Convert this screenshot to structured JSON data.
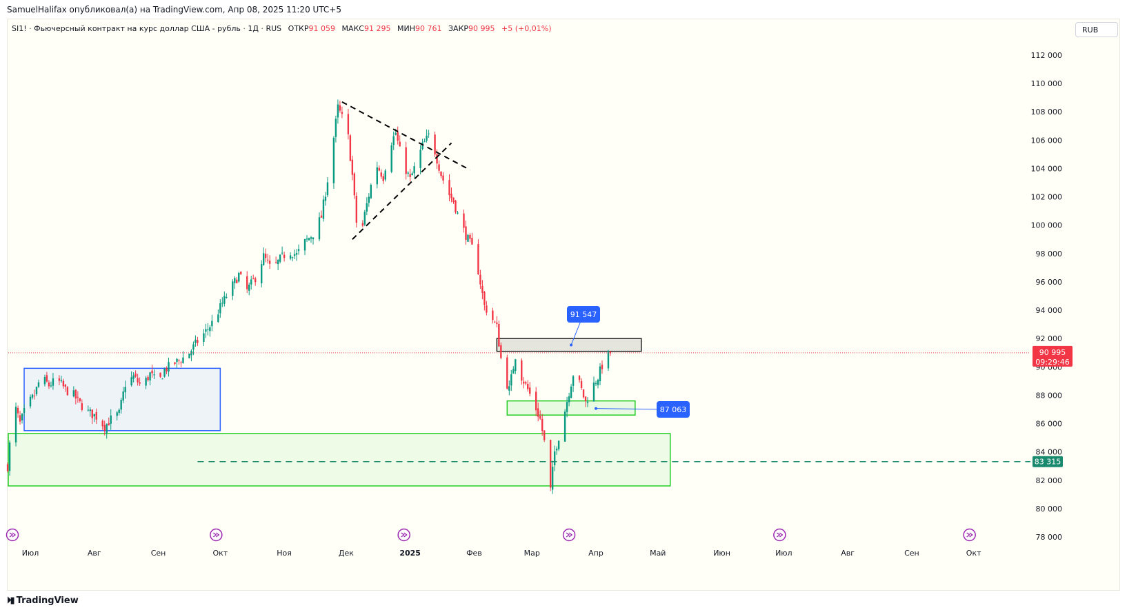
{
  "publisher_line": "SamuelHalifax опубликовал(а) на TradingView.com, Апр 08, 2025 11:20 UTC+5",
  "legend": {
    "symbol": "SI1!",
    "description": "Фьючерсный контракт на курс доллар США - рубль",
    "interval": "1Д",
    "exchange": "RUS",
    "open_key": "ОТКР",
    "open_val": "91 059",
    "high_key": "МАКС",
    "high_val": "91 295",
    "low_key": "МИН",
    "low_val": "90 761",
    "close_key": "ЗАКР",
    "close_val": "90 995",
    "change": "+5 (+0,01%)"
  },
  "currency_button": "RUB",
  "tradingview_brand": "TradingView",
  "colors": {
    "up": "#089981",
    "down": "#f23645",
    "background": "#fffff8",
    "callout": "#2962ff",
    "zone_border": "#22cc22"
  },
  "chart_data": {
    "type": "candlestick",
    "ylim": [
      77000,
      113500
    ],
    "y_ticks": [
      {
        "value": 78000,
        "label": "78 000"
      },
      {
        "value": 80000,
        "label": "80 000"
      },
      {
        "value": 82000,
        "label": "82 000"
      },
      {
        "value": 84000,
        "label": "84 000"
      },
      {
        "value": 86000,
        "label": "86 000"
      },
      {
        "value": 88000,
        "label": "88 000"
      },
      {
        "value": 90000,
        "label": "90 000"
      },
      {
        "value": 92000,
        "label": "92 000"
      },
      {
        "value": 94000,
        "label": "94 000"
      },
      {
        "value": 96000,
        "label": "96 000"
      },
      {
        "value": 98000,
        "label": "98 000"
      },
      {
        "value": 100000,
        "label": "100 000"
      },
      {
        "value": 102000,
        "label": "102 000"
      },
      {
        "value": 104000,
        "label": "104 000"
      },
      {
        "value": 106000,
        "label": "106 000"
      },
      {
        "value": 108000,
        "label": "108 000"
      },
      {
        "value": 110000,
        "label": "110 000"
      },
      {
        "value": 112000,
        "label": "112 000"
      }
    ],
    "x_ticks": [
      {
        "date": "2024-07-01",
        "label": "Июл",
        "bold": false
      },
      {
        "date": "2024-08-01",
        "label": "Авг",
        "bold": false
      },
      {
        "date": "2024-09-01",
        "label": "Сен",
        "bold": false
      },
      {
        "date": "2024-10-01",
        "label": "Окт",
        "bold": false
      },
      {
        "date": "2024-11-01",
        "label": "Ноя",
        "bold": false
      },
      {
        "date": "2024-12-01",
        "label": "Дек",
        "bold": false
      },
      {
        "date": "2025-01-01",
        "label": "2025",
        "bold": true
      },
      {
        "date": "2025-02-01",
        "label": "Фев",
        "bold": false
      },
      {
        "date": "2025-03-01",
        "label": "Мар",
        "bold": false
      },
      {
        "date": "2025-04-01",
        "label": "Апр",
        "bold": false
      },
      {
        "date": "2025-05-01",
        "label": "Май",
        "bold": false
      },
      {
        "date": "2025-06-01",
        "label": "Июн",
        "bold": false
      },
      {
        "date": "2025-07-01",
        "label": "Июл",
        "bold": false
      },
      {
        "date": "2025-08-01",
        "label": "Авг",
        "bold": false
      },
      {
        "date": "2025-09-01",
        "label": "Сен",
        "bold": false
      },
      {
        "date": "2025-10-01",
        "label": "Окт",
        "bold": false
      }
    ],
    "price_path": [
      [
        "2024-06-20",
        83000
      ],
      [
        "2024-06-23",
        87500
      ],
      [
        "2024-06-26",
        86000
      ],
      [
        "2024-06-29",
        87200
      ],
      [
        "2024-07-03",
        88000
      ],
      [
        "2024-07-06",
        89300
      ],
      [
        "2024-07-10",
        88700
      ],
      [
        "2024-07-14",
        89100
      ],
      [
        "2024-07-18",
        88400
      ],
      [
        "2024-07-22",
        88000
      ],
      [
        "2024-07-25",
        87400
      ],
      [
        "2024-07-29",
        86800
      ],
      [
        "2024-08-02",
        86500
      ],
      [
        "2024-08-06",
        85800
      ],
      [
        "2024-08-09",
        86300
      ],
      [
        "2024-08-13",
        86700
      ],
      [
        "2024-08-16",
        88800
      ],
      [
        "2024-08-20",
        89300
      ],
      [
        "2024-08-24",
        88600
      ],
      [
        "2024-08-28",
        89500
      ],
      [
        "2024-09-01",
        88800
      ],
      [
        "2024-09-04",
        89800
      ],
      [
        "2024-09-08",
        90200
      ],
      [
        "2024-09-12",
        90500
      ],
      [
        "2024-09-16",
        91000
      ],
      [
        "2024-09-20",
        91800
      ],
      [
        "2024-09-24",
        92500
      ],
      [
        "2024-09-28",
        93300
      ],
      [
        "2024-10-02",
        94500
      ],
      [
        "2024-10-06",
        95500
      ],
      [
        "2024-10-10",
        96500
      ],
      [
        "2024-10-14",
        95400
      ],
      [
        "2024-10-18",
        96300
      ],
      [
        "2024-10-22",
        97800
      ],
      [
        "2024-10-26",
        96800
      ],
      [
        "2024-10-30",
        97600
      ],
      [
        "2024-11-03",
        98200
      ],
      [
        "2024-11-07",
        97900
      ],
      [
        "2024-11-11",
        98800
      ],
      [
        "2024-11-15",
        99400
      ],
      [
        "2024-11-19",
        100600
      ],
      [
        "2024-11-22",
        103200
      ],
      [
        "2024-11-25",
        106200
      ],
      [
        "2024-11-27",
        108300
      ],
      [
        "2024-11-29",
        107600
      ],
      [
        "2024-12-02",
        106200
      ],
      [
        "2024-12-04",
        103500
      ],
      [
        "2024-12-06",
        100200
      ],
      [
        "2024-12-08",
        99100
      ],
      [
        "2024-12-10",
        100800
      ],
      [
        "2024-12-13",
        102800
      ],
      [
        "2024-12-16",
        104200
      ],
      [
        "2024-12-19",
        103400
      ],
      [
        "2024-12-22",
        105600
      ],
      [
        "2024-12-25",
        106500
      ],
      [
        "2024-12-28",
        104600
      ],
      [
        "2025-01-01",
        103200
      ],
      [
        "2025-01-04",
        104400
      ],
      [
        "2025-01-07",
        105600
      ],
      [
        "2025-01-10",
        106300
      ],
      [
        "2025-01-13",
        105200
      ],
      [
        "2025-01-16",
        103600
      ],
      [
        "2025-01-19",
        102400
      ],
      [
        "2025-01-22",
        101700
      ],
      [
        "2025-01-25",
        100300
      ],
      [
        "2025-01-28",
        99300
      ],
      [
        "2025-01-31",
        98400
      ],
      [
        "2025-02-03",
        96800
      ],
      [
        "2025-02-06",
        94300
      ],
      [
        "2025-02-09",
        93600
      ],
      [
        "2025-02-12",
        92800
      ],
      [
        "2025-02-15",
        89500
      ],
      [
        "2025-02-18",
        88400
      ],
      [
        "2025-02-21",
        90800
      ],
      [
        "2025-02-24",
        89300
      ],
      [
        "2025-02-27",
        88400
      ],
      [
        "2025-03-02",
        87400
      ],
      [
        "2025-03-05",
        86300
      ],
      [
        "2025-03-07",
        84700
      ],
      [
        "2025-03-09",
        82500
      ],
      [
        "2025-03-10",
        81300
      ],
      [
        "2025-03-12",
        84000
      ],
      [
        "2025-03-15",
        85600
      ],
      [
        "2025-03-18",
        87600
      ],
      [
        "2025-03-21",
        89500
      ],
      [
        "2025-03-24",
        88800
      ],
      [
        "2025-03-27",
        87500
      ],
      [
        "2025-03-30",
        88500
      ],
      [
        "2025-04-02",
        89300
      ],
      [
        "2025-04-05",
        90500
      ],
      [
        "2025-04-08",
        90995
      ]
    ],
    "hline_current": {
      "value": 90995,
      "label": "90 995",
      "countdown": "09:29:46"
    },
    "hline_target": {
      "value": 83315,
      "label": "83 315"
    },
    "callouts": [
      {
        "label": "91 547",
        "date": "2025-03-20",
        "value": 91547
      },
      {
        "label": "87 063",
        "date": "2025-04-01",
        "value": 87063
      }
    ],
    "zones": [
      {
        "name": "resistance-zone",
        "from": "2025-02-12",
        "to": "2025-04-23",
        "y1": 91100,
        "y2": 92000,
        "color": "#222222"
      },
      {
        "name": "support-zone",
        "from": "2025-02-17",
        "to": "2025-04-20",
        "y1": 86600,
        "y2": 87600,
        "color": "#22cc22"
      },
      {
        "name": "demand-zone",
        "from": "2024-06-20",
        "to": "2025-05-07",
        "y1": 81600,
        "y2": 85300,
        "color": "#22cc22"
      },
      {
        "name": "range-box",
        "from": "2024-06-28",
        "to": "2024-10-01",
        "y1": 85500,
        "y2": 89900,
        "color": "#2962ff"
      }
    ],
    "trendlines": [
      {
        "from_date": "2024-11-29",
        "from": 108700,
        "to_date": "2025-01-30",
        "to": 103900
      },
      {
        "from_date": "2024-12-04",
        "from": 99000,
        "to_date": "2025-01-21",
        "to": 105800
      }
    ],
    "grid": false
  }
}
